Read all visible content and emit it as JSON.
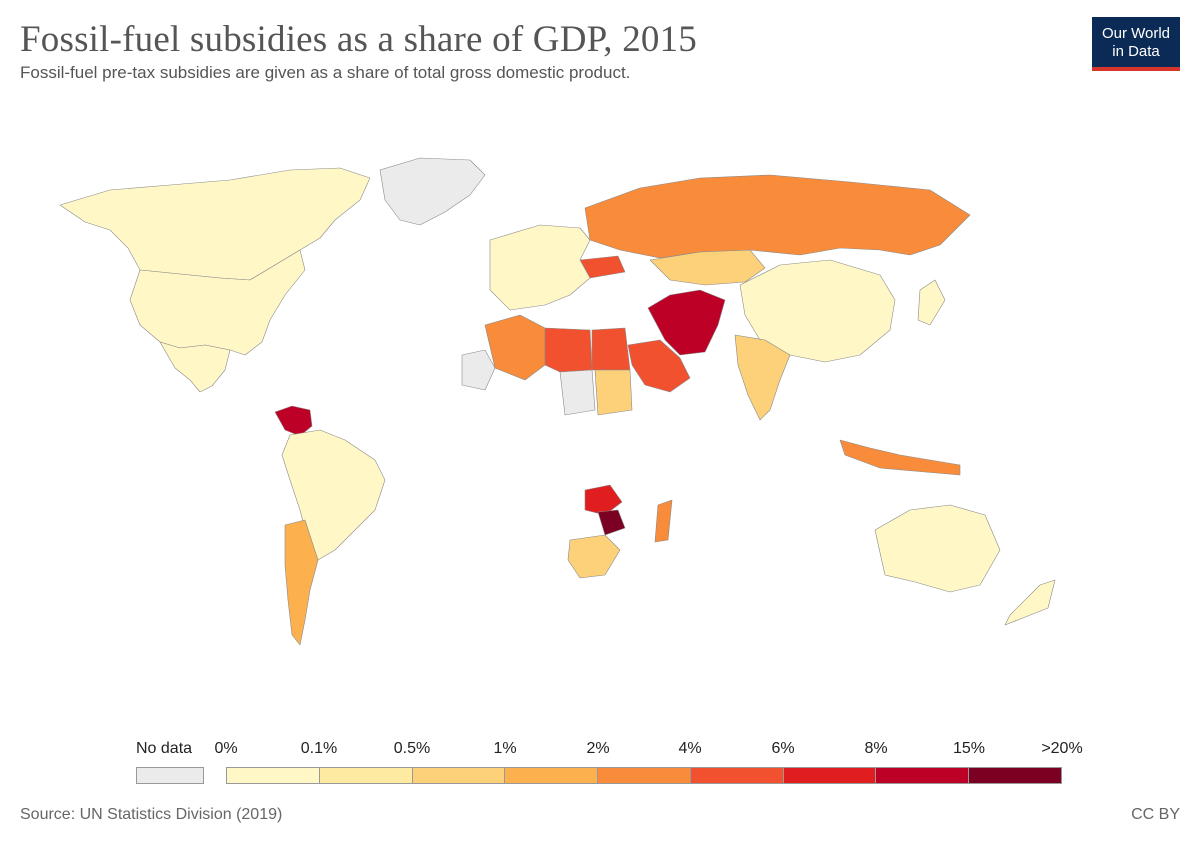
{
  "header": {
    "title": "Fossil-fuel subsidies as a share of GDP, 2015",
    "subtitle": "Fossil-fuel pre-tax subsidies are given as a share of total gross domestic product."
  },
  "logo": {
    "line1": "Our World",
    "line2": "in Data",
    "bg_color": "#0b2b56",
    "accent_color": "#d6352b"
  },
  "legend": {
    "no_data_label": "No data",
    "no_data_color": "#ebebeb",
    "tick_labels": [
      "0%",
      "0.1%",
      "0.5%",
      "1%",
      "2%",
      "4%",
      "6%",
      "8%",
      "15%",
      ">20%"
    ],
    "bin_colors": [
      "#fff8c6",
      "#feeaa0",
      "#fdd07a",
      "#fdb04e",
      "#f98c3a",
      "#f1512e",
      "#e01e1f",
      "#bc0026",
      "#7b0021"
    ]
  },
  "regions": [
    {
      "name": "Canada",
      "color": "#fff8c6"
    },
    {
      "name": "United States",
      "color": "#fff8c6"
    },
    {
      "name": "Mexico",
      "color": "#fff8c6"
    },
    {
      "name": "Greenland",
      "color": "#ebebeb"
    },
    {
      "name": "Venezuela",
      "color": "#bc0026"
    },
    {
      "name": "Brazil",
      "color": "#fff8c6"
    },
    {
      "name": "Argentina",
      "color": "#fdb04e"
    },
    {
      "name": "Russia",
      "color": "#f98c3a"
    },
    {
      "name": "Kazakhstan",
      "color": "#fdd07a"
    },
    {
      "name": "China",
      "color": "#fff8c6"
    },
    {
      "name": "Iran",
      "color": "#bc0026"
    },
    {
      "name": "Saudi Arabia",
      "color": "#f1512e"
    },
    {
      "name": "India",
      "color": "#fdd07a"
    },
    {
      "name": "Algeria",
      "color": "#f98c3a"
    },
    {
      "name": "Libya",
      "color": "#f1512e"
    },
    {
      "name": "Egypt",
      "color": "#f1512e"
    },
    {
      "name": "Zimbabwe",
      "color": "#7b0021"
    },
    {
      "name": "Zambia",
      "color": "#e01e1f"
    },
    {
      "name": "South Africa",
      "color": "#fdd07a"
    },
    {
      "name": "Australia",
      "color": "#fff8c6"
    },
    {
      "name": "Indonesia",
      "color": "#f98c3a"
    },
    {
      "name": "Ukraine",
      "color": "#f1512e"
    },
    {
      "name": "Europe",
      "color": "#fff8c6"
    },
    {
      "name": "Mauritania",
      "color": "#ebebeb"
    },
    {
      "name": "Chad",
      "color": "#ebebeb"
    },
    {
      "name": "Sudan",
      "color": "#fdd07a"
    },
    {
      "name": "Madagascar",
      "color": "#f98c3a"
    },
    {
      "name": "New Zealand",
      "color": "#fff8c6"
    },
    {
      "name": "Japan",
      "color": "#fff8c6"
    }
  ],
  "footer": {
    "source": "Source: UN Statistics Division (2019)",
    "license": "CC BY"
  }
}
